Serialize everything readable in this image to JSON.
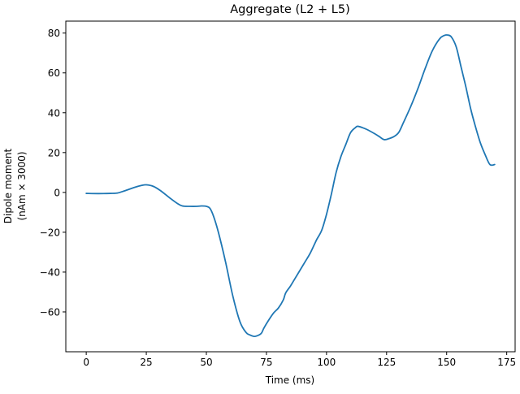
{
  "chart_data": {
    "type": "line",
    "title": "Aggregate (L2 + L5)",
    "xlabel": "Time (ms)",
    "ylabel_lines": [
      "Dipole moment",
      "(nAm × 3000)"
    ],
    "xlim": [
      -8.5,
      178.5
    ],
    "ylim": [
      -80,
      86
    ],
    "xticks": [
      0,
      25,
      50,
      75,
      100,
      125,
      150,
      175
    ],
    "xtick_labels": [
      "0",
      "25",
      "50",
      "75",
      "100",
      "125",
      "150",
      "175"
    ],
    "yticks": [
      -60,
      -40,
      -20,
      0,
      20,
      40,
      60,
      80
    ],
    "ytick_labels": [
      "−60",
      "−40",
      "−20",
      "0",
      "20",
      "40",
      "60",
      "80"
    ],
    "grid": false,
    "series": [
      {
        "color": "#1f77b4",
        "x": [
          0,
          5,
          10,
          13,
          16,
          20,
          23,
          25,
          28,
          31,
          35,
          38,
          40,
          43,
          46,
          48,
          50,
          51.5,
          53,
          55,
          58,
          61,
          64,
          66.5,
          68,
          70,
          72,
          73,
          74,
          76,
          78,
          80,
          82,
          83,
          85,
          87,
          89,
          91,
          93,
          95,
          96,
          98,
          100,
          102,
          104,
          106,
          108,
          110,
          112,
          113,
          115,
          117,
          120,
          122,
          124,
          126,
          128,
          130,
          132,
          135,
          138,
          141,
          144,
          147,
          149,
          150.5,
          152,
          154,
          156,
          158,
          160,
          162,
          164,
          166,
          168,
          170
        ],
        "y": [
          -0.5,
          -0.6,
          -0.5,
          -0.3,
          0.8,
          2.5,
          3.5,
          3.8,
          3.0,
          0.8,
          -3.0,
          -5.6,
          -6.8,
          -7.0,
          -7.0,
          -6.8,
          -7.0,
          -8.0,
          -12.0,
          -20.0,
          -35.0,
          -52.0,
          -65.0,
          -70.3,
          -71.5,
          -72.3,
          -71.5,
          -70.5,
          -68.0,
          -64.0,
          -60.5,
          -58.0,
          -54.0,
          -50.5,
          -47.0,
          -43.0,
          -39.0,
          -35.0,
          -31.0,
          -26.0,
          -23.5,
          -19.0,
          -11.0,
          -1.0,
          10.0,
          18.0,
          24.0,
          30.0,
          32.5,
          33.2,
          32.5,
          31.5,
          29.5,
          28.0,
          26.5,
          27.0,
          28.0,
          30.0,
          35.0,
          43.0,
          52.0,
          62.0,
          71.0,
          77.0,
          78.8,
          79.0,
          78.0,
          73.0,
          63.0,
          53.0,
          42.0,
          33.0,
          25.0,
          19.0,
          14.0,
          14.0
        ]
      }
    ]
  }
}
